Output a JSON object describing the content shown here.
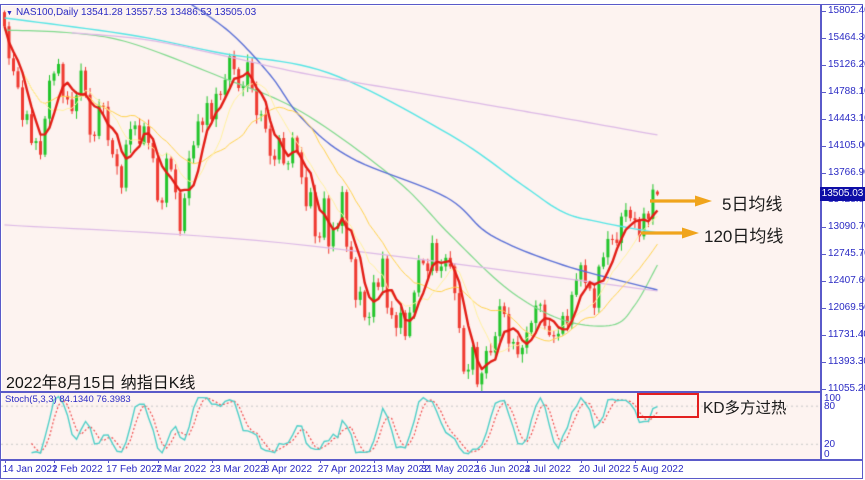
{
  "window": {
    "frame_color": "#5a5ac9",
    "chart_bg": "#fdf3f0",
    "axis_bg": "#ffffff",
    "text_blue": "#2b2bc4"
  },
  "quote_bar": {
    "dropdown_icon": "▼",
    "symbol": "NAS100,Daily",
    "ohlc_text": "13541.28 13557.53 13486.53 13505.03"
  },
  "price_axis": {
    "labels": [
      "15802.40",
      "15464.30",
      "15126.20",
      "14788.10",
      "14443.10",
      "14105.00",
      "13766.90",
      "13428.80",
      "13090.70",
      "12745.70",
      "12407.60",
      "12069.50",
      "11731.40",
      "11393.30",
      "11055.20"
    ],
    "top_value": 15802.4,
    "step": 338.1,
    "current_price": "13505.03",
    "tag_bg": "#0d0da6"
  },
  "date_axis": {
    "labels": [
      {
        "text": "14 Jan 2022",
        "bar": 0
      },
      {
        "text": "1 Feb 2022",
        "bar": 11
      },
      {
        "text": "17 Feb 2022",
        "bar": 23
      },
      {
        "text": "7 Mar 2022",
        "bar": 34
      },
      {
        "text": "23 Mar 2022",
        "bar": 46
      },
      {
        "text": "8 Apr 2022",
        "bar": 58
      },
      {
        "text": "27 Apr 2022",
        "bar": 70
      },
      {
        "text": "13 May 2022",
        "bar": 82
      },
      {
        "text": "31 May 2022",
        "bar": 93
      },
      {
        "text": "16 Jun 2022",
        "bar": 105
      },
      {
        "text": "4 Jul 2022",
        "bar": 116
      },
      {
        "text": "20 Jul 2022",
        "bar": 128
      },
      {
        "text": "5 Aug 2022",
        "bar": 140
      }
    ]
  },
  "annotations": {
    "ma5_label": "5日均线",
    "ma120_label": "120日均线",
    "caption": "2022年8月15日 纳指日K线",
    "kd_label": "KD多方过热",
    "arrow_color": "#f0a41c",
    "box_color": "#e32020"
  },
  "stoch_panel": {
    "label": "Stoch(5,3,3) 84.1340 76.3983",
    "k_value": 84.134,
    "d_value": 76.3983,
    "scale": [
      {
        "text": "100",
        "v": 100
      },
      {
        "text": "80",
        "v": 80
      },
      {
        "text": "20",
        "v": 20
      },
      {
        "text": "0",
        "v": 0
      }
    ],
    "k_color": "#4fcfc8",
    "d_color": "#f04f4f",
    "grid_color": "#c9c9c9",
    "grid_levels": [
      80,
      20
    ]
  },
  "chart_data": {
    "type": "candlestick",
    "symbol": "NAS100",
    "timeframe": "Daily",
    "ylim": [
      10980,
      15890
    ],
    "bars": 146,
    "first_open": 15788,
    "closes": [
      15611,
      15210,
      15048,
      14846,
      14438,
      14510,
      14149,
      14173,
      14003,
      14454,
      14930,
      15020,
      15139,
      14740,
      14694,
      14548,
      14745,
      15056,
      14755,
      14254,
      14238,
      14620,
      14603,
      14185,
      14009,
      13858,
      13590,
      14130,
      14323,
      14370,
      14140,
      14358,
      14151,
      13958,
      13432,
      13402,
      13955,
      13818,
      13532,
      13048,
      13458,
      13956,
      14120,
      14420,
      14376,
      14650,
      14447,
      14765,
      14754,
      14940,
      15239,
      15074,
      14838,
      14861,
      15160,
      14827,
      14498,
      14508,
      14328,
      13990,
      13942,
      14212,
      13893,
      13895,
      14217,
      14033,
      13720,
      13357,
      13533,
      12981,
      12965,
      13456,
      12855,
      13076,
      13111,
      13535,
      12851,
      12694,
      12185,
      12288,
      11967,
      11972,
      12404,
      12348,
      12702,
      12087,
      11994,
      11835,
      12024,
      11731,
      12026,
      12277,
      12681,
      12642,
      12547,
      12897,
      12548,
      12603,
      12712,
      12603,
      12269,
      11832,
      11288,
      11311,
      11594,
      11127,
      11265,
      11546,
      11526,
      11730,
      12105,
      12008,
      11638,
      11658,
      11504,
      11586,
      11779,
      11896,
      12113,
      12126,
      11860,
      11744,
      11728,
      11761,
      11984,
      11877,
      12248,
      12440,
      12619,
      12396,
      12328,
      12086,
      12602,
      12718,
      12948,
      12940,
      12898,
      13228,
      13311,
      13208,
      13186,
      12981,
      13266,
      13199,
      13566,
      13505
    ],
    "last_bar": {
      "open": 13541.28,
      "high": 13557.53,
      "low": 13486.53,
      "close": 13505.03
    },
    "up_color": "#23c52c",
    "down_color": "#ef3a31",
    "moving_averages": {
      "ma5": {
        "period": 5,
        "color": "#e31d16",
        "width": 2.4
      },
      "ma10": {
        "period": 10,
        "color": "#fff0a0",
        "width": 1
      },
      "ma20": {
        "period": 20,
        "color": "#ffd24d",
        "width": 1
      }
    },
    "overlay_lines": [
      {
        "name": "ma-green",
        "color": "#7fd98c",
        "width": 1.2,
        "points": [
          [
            0,
            15564
          ],
          [
            15,
            15527
          ],
          [
            28,
            15402
          ],
          [
            48,
            14976
          ],
          [
            66,
            14537
          ],
          [
            87,
            13686
          ],
          [
            99,
            12997
          ],
          [
            112,
            12309
          ],
          [
            124,
            11933
          ],
          [
            135,
            11870
          ],
          [
            140,
            12121
          ],
          [
            145,
            12622
          ]
        ]
      },
      {
        "name": "ma-cyan-120",
        "color": "#55e5e5",
        "width": 1.4,
        "points": [
          [
            0,
            15715
          ],
          [
            28,
            15502
          ],
          [
            48,
            15276
          ],
          [
            72,
            15026
          ],
          [
            99,
            14250
          ],
          [
            115,
            13624
          ],
          [
            124,
            13286
          ],
          [
            132,
            13161
          ],
          [
            145,
            13023
          ]
        ]
      },
      {
        "name": "ma-blue",
        "color": "#5a6fd6",
        "width": 1.4,
        "points": [
          [
            40,
            15940
          ],
          [
            50,
            15539
          ],
          [
            59,
            15001
          ],
          [
            66,
            14462
          ],
          [
            77,
            13962
          ],
          [
            98,
            13473
          ],
          [
            108,
            12997
          ],
          [
            124,
            12622
          ],
          [
            145,
            12309
          ]
        ]
      },
      {
        "name": "ma-purple",
        "color": "#dcb9e6",
        "width": 1.3,
        "points": [
          [
            15,
            15530
          ],
          [
            32,
            15439
          ],
          [
            50,
            15226
          ],
          [
            66,
            15026
          ],
          [
            88,
            14813
          ],
          [
            110,
            14600
          ],
          [
            124,
            14462
          ],
          [
            145,
            14250
          ]
        ]
      },
      {
        "name": "trend-pale",
        "color": "#dcb9e6",
        "width": 1.2,
        "points": [
          [
            0,
            13123
          ],
          [
            62,
            12897
          ],
          [
            145,
            12296
          ]
        ]
      }
    ],
    "stoch_settings": {
      "k": 5,
      "slowing": 3,
      "d": 3
    }
  }
}
